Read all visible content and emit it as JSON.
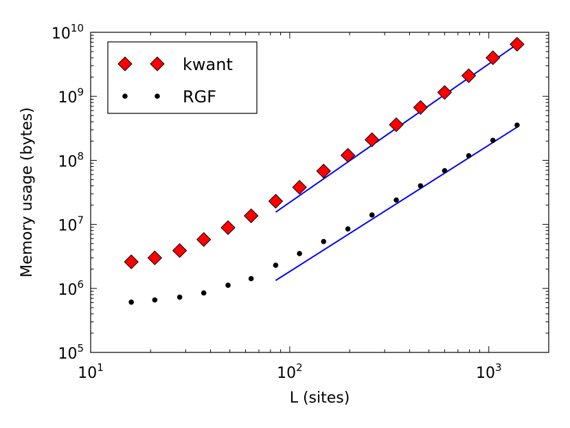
{
  "chart_data": {
    "type": "scatter",
    "title": "",
    "xlabel": "L (sites)",
    "ylabel": "Memory usage (bytes)",
    "xscale": "log",
    "yscale": "log",
    "xlim": [
      10,
      2000
    ],
    "ylim": [
      100000,
      10000000000
    ],
    "x_ticks": [
      {
        "value": 10,
        "base": "10",
        "exp": "1"
      },
      {
        "value": 100,
        "base": "10",
        "exp": "2"
      },
      {
        "value": 1000,
        "base": "10",
        "exp": "3"
      }
    ],
    "y_ticks": [
      {
        "value": 100000,
        "base": "10",
        "exp": "5"
      },
      {
        "value": 1000000,
        "base": "10",
        "exp": "6"
      },
      {
        "value": 10000000,
        "base": "10",
        "exp": "7"
      },
      {
        "value": 100000000,
        "base": "10",
        "exp": "8"
      },
      {
        "value": 1000000000,
        "base": "10",
        "exp": "9"
      },
      {
        "value": 10000000000,
        "base": "10",
        "exp": "10"
      }
    ],
    "legend_position": "top-left",
    "series": [
      {
        "name": "kwant",
        "marker": "diamond",
        "color": "#ff0000",
        "x": [
          16,
          21,
          28,
          37,
          49,
          64,
          85,
          112,
          148,
          196,
          259,
          343,
          454,
          600,
          793,
          1049,
          1387
        ],
        "y": [
          2600000,
          3000000,
          3900000,
          5800000,
          8900000,
          13600000,
          23000000,
          38000000,
          68000000,
          120000000,
          210000000,
          360000000,
          670000000,
          1150000000,
          2100000000,
          4000000000,
          6500000000
        ]
      },
      {
        "name": "RGF",
        "marker": "dot",
        "color": "#000000",
        "x": [
          16,
          21,
          28,
          37,
          49,
          64,
          85,
          112,
          148,
          196,
          259,
          343,
          454,
          600,
          793,
          1049,
          1387
        ],
        "y": [
          610000,
          660000,
          730000,
          850000,
          1120000,
          1420000,
          2300000,
          3500000,
          5400000,
          8500000,
          14000000,
          24000000,
          40000000,
          69000000,
          118000000,
          205000000,
          355000000
        ]
      }
    ],
    "fit_lines": [
      {
        "color": "#0000ff",
        "x": [
          85,
          1387
        ],
        "y": [
          15500000,
          6500000000
        ]
      },
      {
        "color": "#0000ff",
        "x": [
          85,
          1387
        ],
        "y": [
          1330000,
          330000000
        ]
      }
    ]
  }
}
